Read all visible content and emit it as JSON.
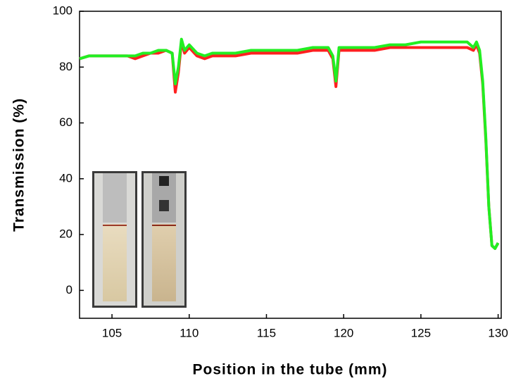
{
  "chart_data": {
    "type": "line",
    "xlabel": "Position in the tube (mm)",
    "ylabel": "Transmission (%)",
    "x": [
      102.9,
      103.5,
      104,
      104.5,
      105,
      105.5,
      106,
      106.5,
      107,
      107.5,
      108,
      108.5,
      108.9,
      109.1,
      109.3,
      109.5,
      109.7,
      110,
      110.5,
      111,
      111.5,
      112,
      113,
      114,
      115,
      116,
      117,
      118,
      119,
      119.3,
      119.5,
      119.7,
      120,
      121,
      122,
      123,
      124,
      125,
      126,
      127,
      128,
      128.4,
      128.6,
      128.8,
      129,
      129.2,
      129.4,
      129.6,
      129.8,
      130
    ],
    "series": [
      {
        "color": "#ff2020",
        "values": [
          83,
          84,
          84,
          84,
          84,
          84,
          84,
          83,
          84,
          85,
          85,
          86,
          85,
          71,
          78,
          89,
          85,
          87,
          84,
          83,
          84,
          84,
          84,
          85,
          85,
          85,
          85,
          86,
          86,
          83,
          73,
          86,
          86,
          86,
          86,
          87,
          87,
          87,
          87,
          87,
          87,
          86,
          88,
          85,
          74,
          54,
          30,
          16,
          15,
          17
        ]
      },
      {
        "color": "#22ee22",
        "values": [
          83,
          84,
          84,
          84,
          84,
          84,
          84,
          84,
          85,
          85,
          86,
          86,
          85,
          74,
          80,
          90,
          86,
          88,
          85,
          84,
          85,
          85,
          85,
          86,
          86,
          86,
          86,
          87,
          87,
          84,
          75,
          87,
          87,
          87,
          87,
          88,
          88,
          89,
          89,
          89,
          89,
          87,
          89,
          86,
          75,
          55,
          30,
          16,
          15,
          17
        ]
      }
    ],
    "xlim": [
      102.9,
      130.2
    ],
    "xticks": [
      105,
      110,
      115,
      120,
      125,
      130
    ],
    "ylim": [
      -10,
      100
    ],
    "yticks": [
      0,
      20,
      40,
      60,
      80,
      100
    ]
  }
}
